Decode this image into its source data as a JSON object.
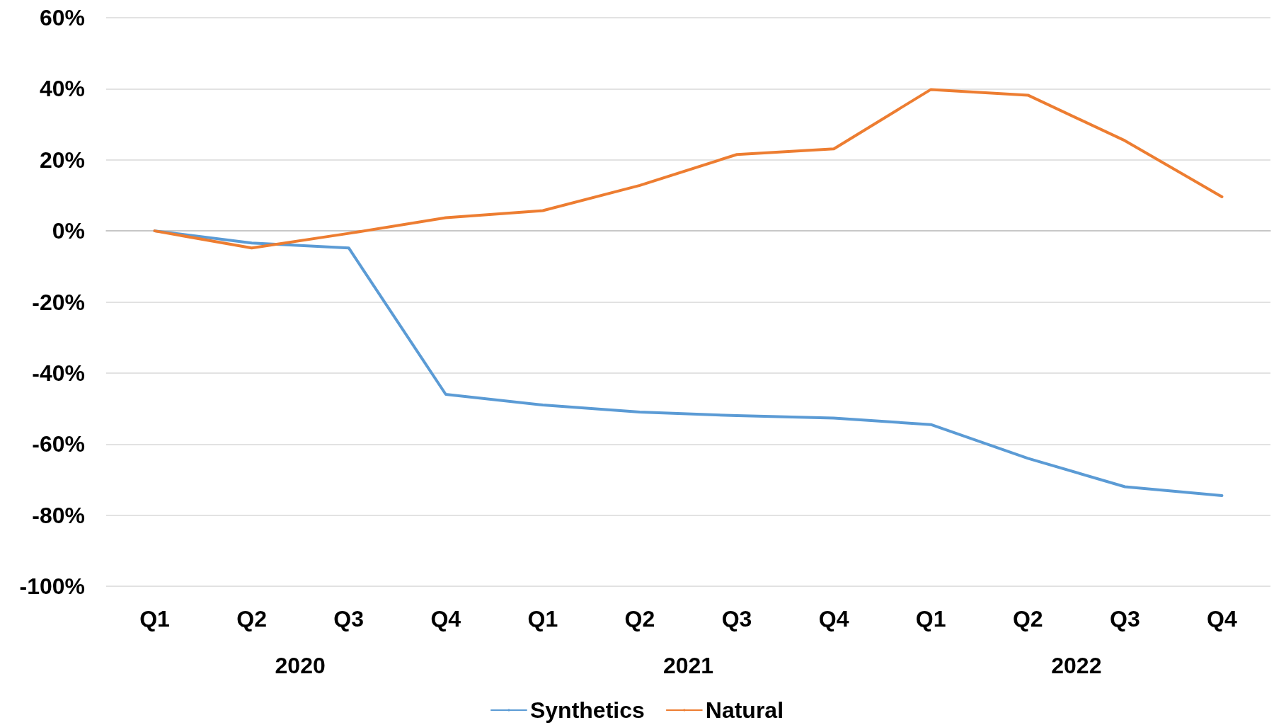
{
  "chart_data": {
    "type": "line",
    "categories": [
      "Q1",
      "Q2",
      "Q3",
      "Q4",
      "Q1",
      "Q2",
      "Q3",
      "Q4",
      "Q1",
      "Q2",
      "Q3",
      "Q4"
    ],
    "series": [
      {
        "name": "Synthetics",
        "color": "#5b9bd5",
        "values": [
          0,
          -3.4,
          -4.8,
          -46,
          -49,
          -51,
          -52,
          -52.7,
          -54.5,
          -64,
          -72,
          -74.5
        ]
      },
      {
        "name": "Natural",
        "color": "#ed7d31",
        "values": [
          0,
          -4.8,
          -0.7,
          3.7,
          5.7,
          12.8,
          21.5,
          23.1,
          39.8,
          38.2,
          25.4,
          9.6
        ]
      }
    ],
    "annotations": [
      "2020",
      "2021",
      "2022"
    ],
    "ylim": [
      -100,
      60
    ],
    "yticks": [
      {
        "value": -100,
        "label": "-100%"
      },
      {
        "value": -80,
        "label": "-80%"
      },
      {
        "value": -60,
        "label": "-60%"
      },
      {
        "value": -40,
        "label": "-40%"
      },
      {
        "value": -20,
        "label": "-20%"
      },
      {
        "value": 0,
        "label": "0%"
      },
      {
        "value": 20,
        "label": "20%"
      },
      {
        "value": 40,
        "label": "40%"
      },
      {
        "value": 60,
        "label": "60%"
      }
    ],
    "grid": "y",
    "legend": "bottom",
    "marker": "none",
    "line_style": "solid"
  }
}
